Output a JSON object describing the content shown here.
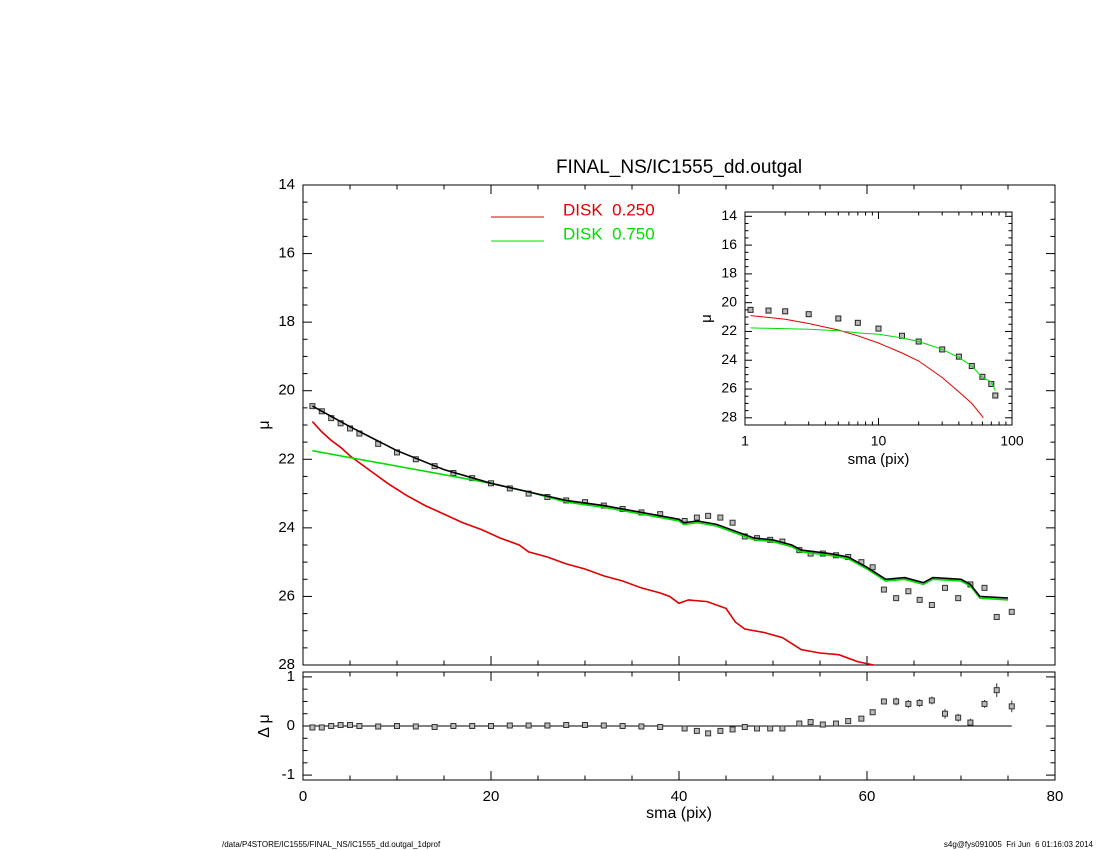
{
  "chart_data": [
    {
      "type": "line",
      "title": "FINAL_NS/IC1555_dd.outgal",
      "ylabel": "μ",
      "xlim": [
        0,
        80
      ],
      "ylim": [
        28,
        14
      ],
      "yticks": [
        14,
        16,
        18,
        20,
        22,
        24,
        26,
        28
      ],
      "legend": "upper center",
      "series": [
        {
          "color": "#333333",
          "marker": "square",
          "x": [
            1,
            2,
            3,
            4,
            5,
            6,
            8,
            10,
            12,
            14,
            16,
            18,
            20,
            22,
            24,
            26,
            28,
            30,
            32,
            34,
            36,
            38,
            40.6,
            41.9,
            43.1,
            44.4,
            45.7,
            47,
            48.3,
            49.7,
            51,
            52.8,
            54,
            55.3,
            56.7,
            58,
            59.4,
            60.6,
            61.8,
            63.1,
            64.4,
            65.6,
            66.9,
            68.3,
            69.7,
            71,
            72.5,
            73.8,
            75.4
          ],
          "values": [
            20.45,
            20.6,
            20.8,
            20.95,
            21.1,
            21.25,
            21.55,
            21.8,
            22.0,
            22.2,
            22.4,
            22.55,
            22.7,
            22.85,
            23.0,
            23.1,
            23.2,
            23.25,
            23.35,
            23.45,
            23.55,
            23.6,
            23.8,
            23.7,
            23.65,
            23.7,
            23.85,
            24.25,
            24.3,
            24.35,
            24.4,
            24.65,
            24.75,
            24.75,
            24.8,
            24.85,
            25.0,
            25.15,
            25.8,
            26.05,
            25.85,
            26.1,
            26.25,
            25.75,
            26.05,
            25.65,
            25.75,
            26.6,
            26.45
          ]
        },
        {
          "name": "DISK  0.250",
          "color": "#e00000",
          "x": [
            1,
            2,
            3,
            4,
            5,
            7,
            9,
            11,
            13,
            15,
            17,
            19,
            21,
            23,
            24,
            26,
            28,
            30,
            32,
            34,
            36,
            38,
            39,
            40,
            41,
            43,
            45,
            46,
            47,
            49,
            51,
            53,
            55,
            57,
            59,
            60.7
          ],
          "values": [
            20.9,
            21.2,
            21.45,
            21.65,
            21.9,
            22.3,
            22.7,
            23.05,
            23.35,
            23.6,
            23.85,
            24.05,
            24.3,
            24.5,
            24.7,
            24.85,
            25.05,
            25.2,
            25.4,
            25.55,
            25.75,
            25.9,
            26.0,
            26.2,
            26.1,
            26.15,
            26.35,
            26.75,
            26.95,
            27.05,
            27.2,
            27.55,
            27.65,
            27.7,
            27.9,
            28.0
          ]
        },
        {
          "name": "DISK  0.750",
          "color": "#00dd00",
          "x": [
            1,
            5,
            10,
            15,
            20,
            24,
            28,
            32,
            36,
            40,
            40.5,
            42,
            44,
            46,
            48,
            50,
            52,
            53,
            56,
            58,
            60,
            62,
            64,
            66,
            67,
            70,
            71,
            72,
            75
          ],
          "values": [
            21.75,
            21.95,
            22.2,
            22.45,
            22.7,
            22.95,
            23.25,
            23.4,
            23.6,
            23.8,
            23.9,
            23.85,
            23.95,
            24.15,
            24.35,
            24.4,
            24.55,
            24.7,
            24.8,
            24.9,
            25.2,
            25.55,
            25.5,
            25.65,
            25.5,
            25.55,
            25.7,
            26.05,
            26.1
          ]
        },
        {
          "color": "#000000",
          "x": [
            1,
            5,
            10,
            15,
            20,
            24,
            28,
            32,
            36,
            40,
            40.5,
            42,
            44,
            46,
            48,
            50,
            52,
            53,
            56,
            58,
            60,
            62,
            64,
            66,
            67,
            70,
            71,
            72,
            75
          ],
          "values": [
            20.45,
            21.05,
            21.75,
            22.3,
            22.7,
            22.95,
            23.2,
            23.35,
            23.55,
            23.75,
            23.85,
            23.8,
            23.9,
            24.1,
            24.3,
            24.35,
            24.5,
            24.65,
            24.75,
            24.85,
            25.15,
            25.5,
            25.45,
            25.6,
            25.45,
            25.5,
            25.65,
            26.0,
            26.05
          ]
        }
      ]
    },
    {
      "type": "scatter",
      "xlabel": "sma (pix)",
      "ylabel": "Δ μ",
      "xlim": [
        0,
        80
      ],
      "xticks": [
        0,
        20,
        40,
        60,
        80
      ],
      "ylim": [
        -1.1,
        1.1
      ],
      "yticks": [
        -1,
        0,
        1
      ],
      "series": [
        {
          "color": "#333333",
          "marker": "square",
          "x": [
            1,
            2,
            3,
            4,
            5,
            6,
            8,
            10,
            12,
            14,
            16,
            18,
            20,
            22,
            24,
            26,
            28,
            30,
            32,
            34,
            36,
            38,
            40.6,
            41.9,
            43.1,
            44.4,
            45.7,
            47,
            48.3,
            49.7,
            51,
            52.8,
            54,
            55.3,
            56.7,
            58,
            59.4,
            60.6,
            61.8,
            63.1,
            64.4,
            65.6,
            66.9,
            68.3,
            69.7,
            71,
            72.5,
            73.8,
            75.4
          ],
          "values": [
            -0.03,
            -0.03,
            0,
            0.02,
            0.02,
            0,
            -0.01,
            0,
            -0.01,
            -0.02,
            0,
            0,
            0,
            0.01,
            0.01,
            0.01,
            0.02,
            0.02,
            0.01,
            0,
            -0.01,
            -0.02,
            -0.05,
            -0.1,
            -0.15,
            -0.1,
            -0.07,
            -0.02,
            -0.05,
            -0.05,
            -0.05,
            0.05,
            0.08,
            0.03,
            0.05,
            0.1,
            0.15,
            0.28,
            0.5,
            0.5,
            0.45,
            0.47,
            0.52,
            0.25,
            0.17,
            0.07,
            0.45,
            0.73,
            0.4
          ],
          "errors": [
            0.02,
            0.02,
            0.02,
            0.02,
            0.02,
            0.02,
            0.02,
            0.02,
            0.02,
            0.02,
            0.02,
            0.02,
            0.02,
            0.02,
            0.02,
            0.02,
            0.02,
            0.02,
            0.02,
            0.02,
            0.02,
            0.02,
            0.02,
            0.02,
            0.02,
            0.02,
            0.02,
            0.02,
            0.02,
            0.02,
            0.02,
            0.02,
            0.02,
            0.02,
            0.02,
            0.02,
            0.02,
            0.04,
            0.06,
            0.08,
            0.08,
            0.08,
            0.08,
            0.1,
            0.08,
            0.08,
            0.08,
            0.14,
            0.12
          ]
        }
      ]
    },
    {
      "type": "line",
      "xlabel": "sma (pix)",
      "ylabel": "μ",
      "xlog": true,
      "xlim": [
        1,
        100
      ],
      "xticks": [
        1,
        10,
        100
      ],
      "ylim": [
        28.5,
        13.7
      ],
      "yticks": [
        14,
        16,
        18,
        20,
        22,
        24,
        26,
        28
      ],
      "series": [
        {
          "color": "#222222",
          "marker": "square",
          "x": [
            1.1,
            1.5,
            2,
            3,
            5,
            7,
            10,
            15,
            20,
            30,
            40,
            50,
            60,
            70,
            75
          ],
          "values": [
            20.5,
            20.55,
            20.6,
            20.8,
            21.1,
            21.4,
            21.8,
            22.3,
            22.7,
            23.25,
            23.75,
            24.4,
            25.15,
            25.65,
            26.45
          ]
        },
        {
          "color": "#e00000",
          "x": [
            1.1,
            2,
            3,
            5,
            7,
            10,
            15,
            20,
            30,
            40,
            50,
            60,
            61
          ],
          "values": [
            20.9,
            21.15,
            21.45,
            21.9,
            22.3,
            22.8,
            23.5,
            24.05,
            25.2,
            26.2,
            27.0,
            27.9,
            28.0
          ]
        },
        {
          "color": "#00dd00",
          "x": [
            1.1,
            3,
            5,
            7,
            10,
            15,
            20,
            30,
            40,
            50,
            60,
            70,
            75
          ],
          "values": [
            21.75,
            21.85,
            21.95,
            22.1,
            22.2,
            22.45,
            22.7,
            23.25,
            23.8,
            24.4,
            25.2,
            25.5,
            26.1
          ]
        }
      ]
    }
  ],
  "footer": {
    "left": "/data/P4STORE/IC1555/FINAL_NS/IC1555_dd.outgal_1dprof",
    "right": "s4g@fys091005  Fri Jun  6 01:16:03 2014"
  }
}
